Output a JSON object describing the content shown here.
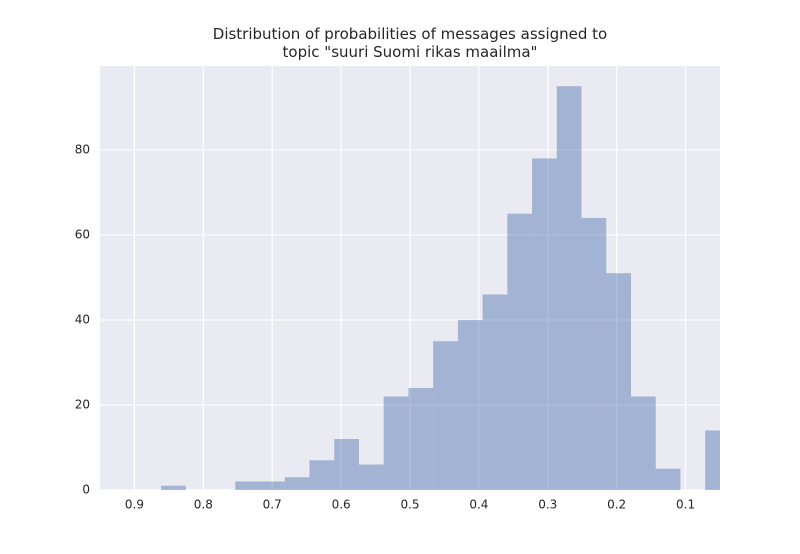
{
  "chart_data": {
    "type": "histogram",
    "title": "Distribution of probabilities of messages assigned to\ntopic \"suuri Suomi rikas maailma\"",
    "bins": [
      0.0356,
      0.0715,
      0.1074,
      0.1433,
      0.1792,
      0.2151,
      0.251,
      0.2869,
      0.3228,
      0.3587,
      0.3946,
      0.4305,
      0.4664,
      0.5023,
      0.5382,
      0.5741,
      0.61,
      0.6459,
      0.6818,
      0.7177,
      0.7536,
      0.7895,
      0.8254,
      0.8613
    ],
    "counts": [
      14,
      0,
      5,
      22,
      51,
      64,
      95,
      78,
      65,
      46,
      40,
      35,
      24,
      22,
      6,
      12,
      7,
      3,
      2,
      2,
      0,
      0,
      1
    ],
    "color": "#4c72b0",
    "alpha": 0.45,
    "xlim": [
      0.95,
      0.05
    ],
    "xticks": [
      0.9,
      0.8,
      0.7,
      0.6,
      0.5,
      0.4,
      0.3,
      0.2,
      0.1
    ],
    "ylim": [
      0,
      99.75
    ],
    "yticks": [
      0,
      20,
      40,
      60,
      80
    ],
    "grid": true
  }
}
